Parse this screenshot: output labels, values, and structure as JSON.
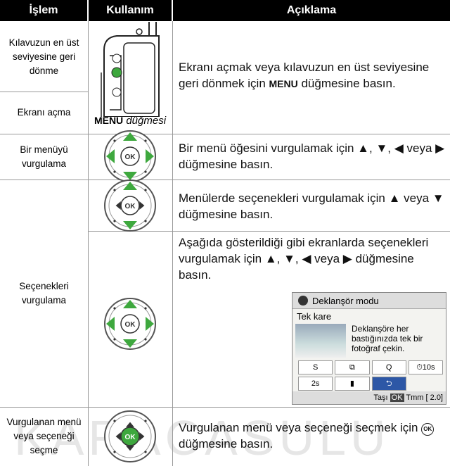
{
  "table": {
    "header": [
      "İşlem",
      "Kullanım",
      "Açıklama"
    ],
    "ok_label": "OK",
    "rows": [
      {
        "actions": [
          "Kılavuzun en üst seviyesine geri dönme",
          "Ekranı açma"
        ],
        "usage": [
          "MENU",
          "düğmesi"
        ],
        "description": [
          "Ekranı açmak veya kılavuzun en üst seviyesine geri dönmek için ",
          "MENU",
          " düğmesine basın."
        ]
      },
      {
        "actions": [
          "Bir menüyü vurgulama"
        ],
        "description": [
          "Bir menü öğesini vurgulamak için ▲, ▼, ◀ veya ▶ düğmesine basın."
        ]
      },
      {
        "actions": [
          "Seçenekleri vurgulama"
        ],
        "description": [
          "Menülerde seçenekleri vurgulamak için ▲ veya ▼ düğmesine basın.",
          "Aşağıda gösterildiği gibi ekranlarda seçenekleri vurgulamak için ▲, ▼, ◀ veya ▶ düğmesine basın."
        ],
        "screen": {
          "title": "Deklanşör modu",
          "mode": "Tek kare",
          "text": "Deklanşöre her bastığınızda tek bir fotoğraf çekin.",
          "options": [
            "S",
            "⧉",
            "Q",
            "⏱10s",
            "2s",
            "▮",
            "⮌"
          ],
          "footer": [
            "Taşı",
            "OK",
            "Tmm",
            "[ 2.0]"
          ]
        }
      },
      {
        "actions": [
          "Vurgulanan menü veya seçeneği seçme"
        ],
        "description": [
          "Vurgulanan menü veya seçeneği seçmek için ",
          "OK",
          " düğmesine basın."
        ]
      }
    ],
    "watermark": "KARACASULU"
  }
}
